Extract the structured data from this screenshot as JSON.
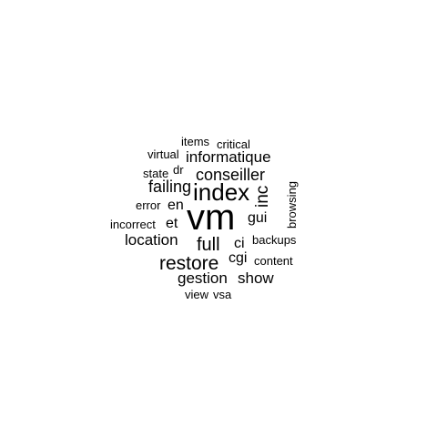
{
  "word_cloud": {
    "text_color": "#000000",
    "background_color": "#ffffff",
    "words": [
      "items",
      "critical",
      "virtual",
      "informatique",
      "state",
      "dr",
      "conseiller",
      "failing",
      "index",
      "inc",
      "browsing",
      "error",
      "en",
      "vm",
      "gui",
      "incorrect",
      "et",
      "location",
      "full",
      "ci",
      "backups",
      "cgi",
      "restore",
      "content",
      "gestion",
      "show",
      "view",
      "vsa"
    ]
  }
}
